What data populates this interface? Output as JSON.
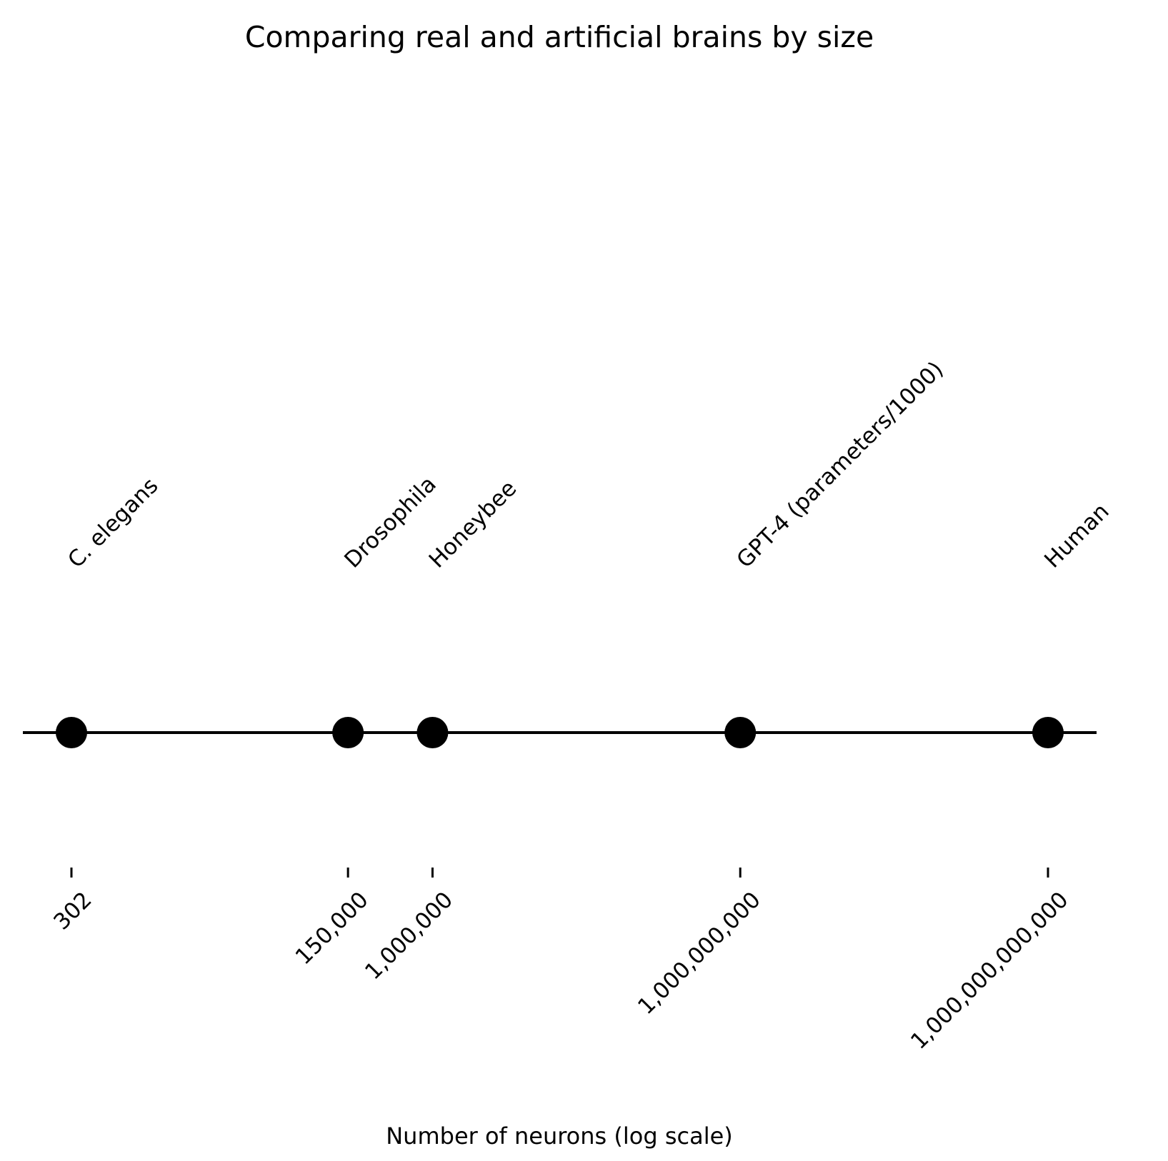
{
  "chart_data": {
    "type": "scatter",
    "title": "Comparing real and artificial brains by size",
    "xlabel": "Number of neurons (log scale)",
    "ylabel": "",
    "xscale": "log",
    "xlim": [
      100,
      3000000000000
    ],
    "grid": false,
    "points": [
      {
        "label": "C. elegans",
        "x": 302
      },
      {
        "label": "Drosophila",
        "x": 150000
      },
      {
        "label": "Honeybee",
        "x": 1000000
      },
      {
        "label": "GPT-4 (parameters/1000)",
        "x": 1000000000
      },
      {
        "label": "Human",
        "x": 1000000000000
      }
    ],
    "ticks": [
      {
        "value": 302,
        "label": "302"
      },
      {
        "value": 150000,
        "label": "150,000"
      },
      {
        "value": 1000000,
        "label": "1,000,000"
      },
      {
        "value": 1000000000,
        "label": "1,000,000,000"
      },
      {
        "value": 1000000000000,
        "label": "1,000,000,000,000"
      }
    ],
    "colors": {
      "marker": "#000000",
      "line": "#000000"
    }
  }
}
